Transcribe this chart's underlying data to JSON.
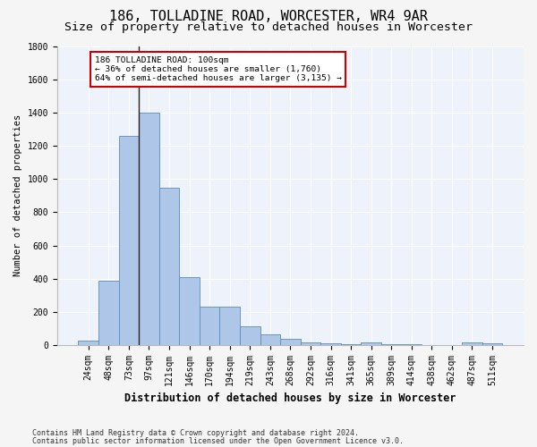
{
  "title1": "186, TOLLADINE ROAD, WORCESTER, WR4 9AR",
  "title2": "Size of property relative to detached houses in Worcester",
  "xlabel": "Distribution of detached houses by size in Worcester",
  "ylabel": "Number of detached properties",
  "categories": [
    "24sqm",
    "48sqm",
    "73sqm",
    "97sqm",
    "121sqm",
    "146sqm",
    "170sqm",
    "194sqm",
    "219sqm",
    "243sqm",
    "268sqm",
    "292sqm",
    "316sqm",
    "341sqm",
    "365sqm",
    "389sqm",
    "414sqm",
    "438sqm",
    "462sqm",
    "487sqm",
    "511sqm"
  ],
  "values": [
    25,
    390,
    1260,
    1400,
    950,
    410,
    230,
    230,
    115,
    65,
    40,
    15,
    10,
    5,
    18,
    5,
    5,
    0,
    0,
    15,
    10
  ],
  "bar_color": "#aec6e8",
  "bar_edge_color": "#5b8db8",
  "annotation_line1": "186 TOLLADINE ROAD: 100sqm",
  "annotation_line2": "← 36% of detached houses are smaller (1,760)",
  "annotation_line3": "64% of semi-detached houses are larger (3,135) →",
  "annotation_box_facecolor": "#ffffff",
  "annotation_box_edgecolor": "#cc0000",
  "footer1": "Contains HM Land Registry data © Crown copyright and database right 2024.",
  "footer2": "Contains public sector information licensed under the Open Government Licence v3.0.",
  "ylim": [
    0,
    1800
  ],
  "yticks": [
    0,
    200,
    400,
    600,
    800,
    1000,
    1200,
    1400,
    1600,
    1800
  ],
  "bg_color": "#eef2fa",
  "grid_color": "#ffffff",
  "fig_facecolor": "#f5f5f5",
  "title1_fontsize": 11,
  "title2_fontsize": 9.5,
  "bar_ylabel_fontsize": 7.5,
  "xlabel_fontsize": 8.5,
  "tick_fontsize": 7,
  "footer_fontsize": 6,
  "vline_x_index": 3
}
